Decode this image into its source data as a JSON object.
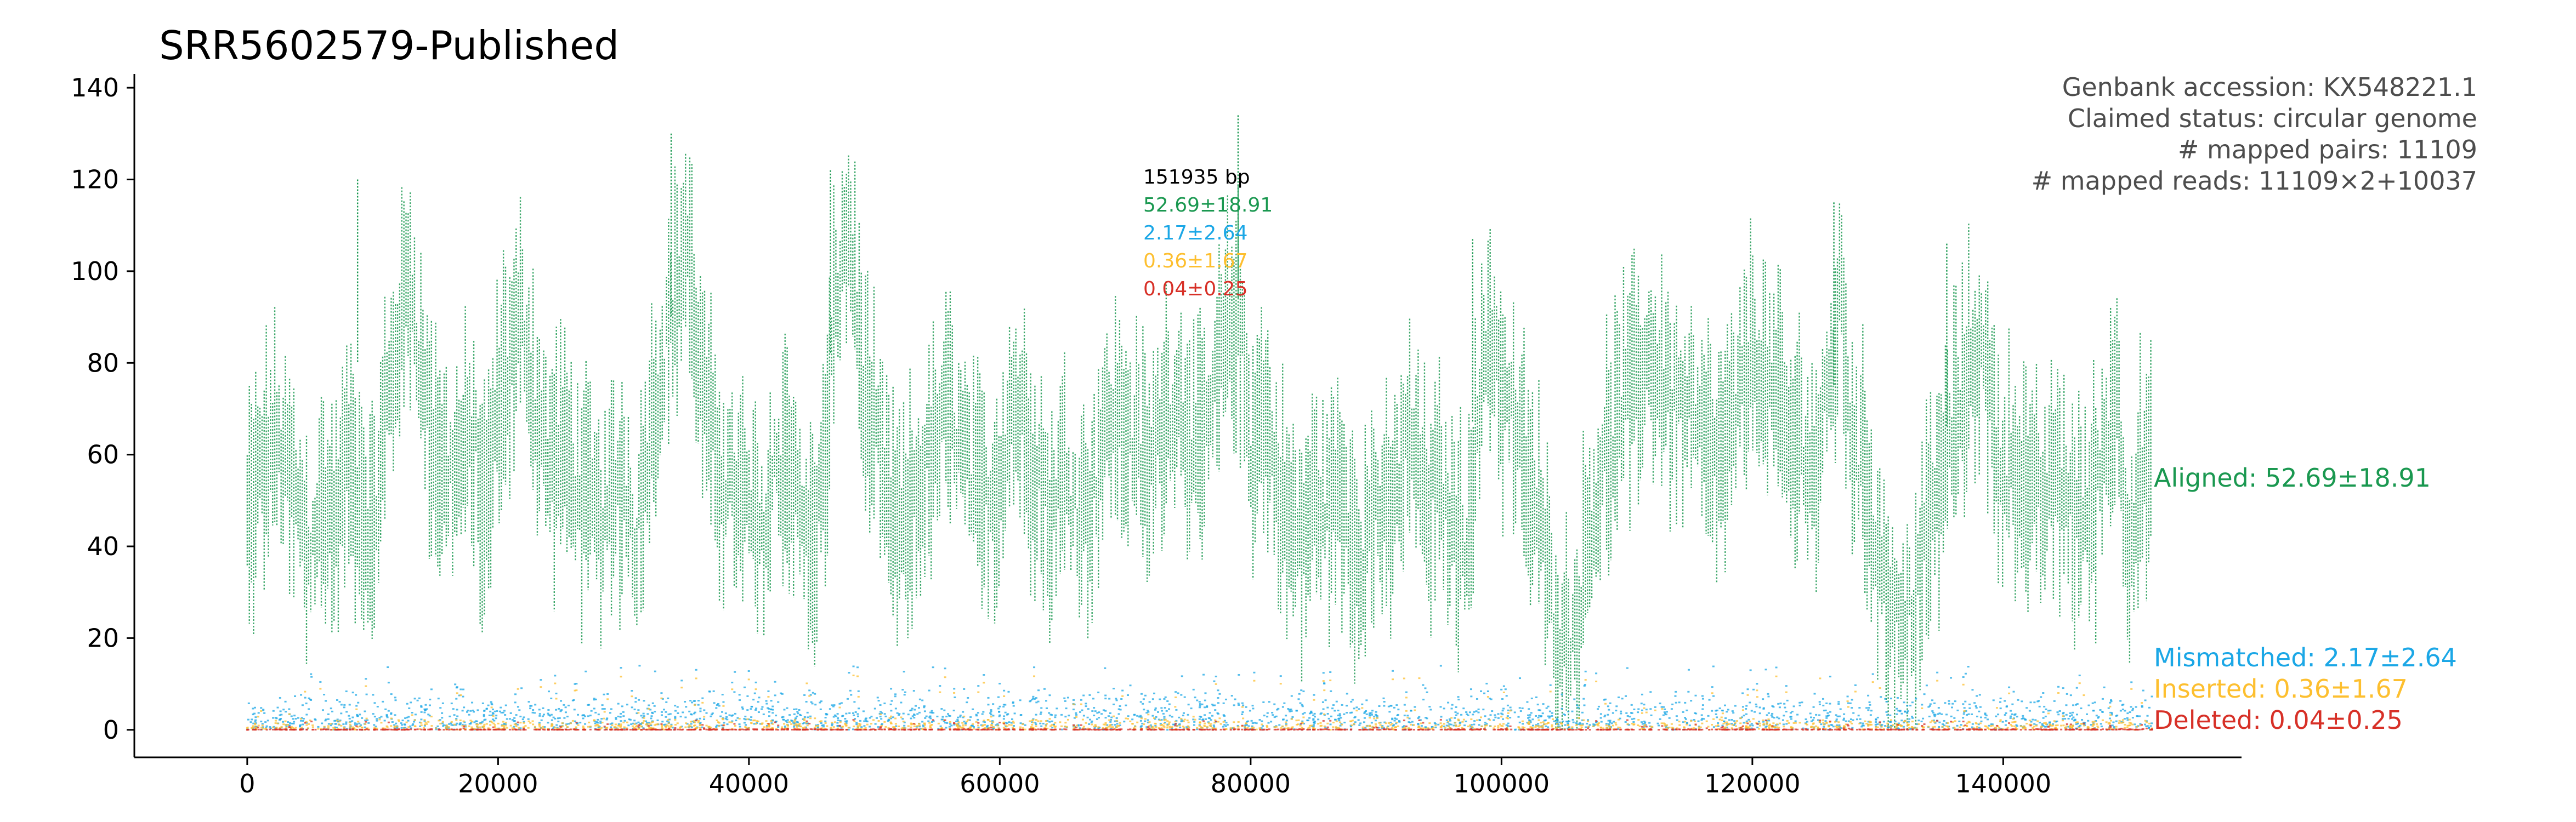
{
  "chart_data": {
    "type": "scatter",
    "title": "SRR5602579-Published",
    "xlabel": "",
    "ylabel": "",
    "xlim": [
      -9000,
      159000
    ],
    "ylim": [
      -6,
      143
    ],
    "x_ticks": [
      0,
      20000,
      40000,
      60000,
      80000,
      100000,
      120000,
      140000
    ],
    "x_tick_labels": [
      "0",
      "20000",
      "40000",
      "60000",
      "80000",
      "100000",
      "120000",
      "140000"
    ],
    "y_ticks": [
      0,
      20,
      40,
      60,
      80,
      100,
      120,
      140
    ],
    "y_tick_labels": [
      "0",
      "20",
      "40",
      "60",
      "80",
      "100",
      "120",
      "140"
    ],
    "genome_length": 151935,
    "info_lines": [
      "Genbank accession: KX548221.1",
      "Claimed status: circular genome",
      "# mapped pairs: 11109",
      "# mapped reads: 11109×2+10037"
    ],
    "stats_box": {
      "length_label": "151935 bp",
      "aligned": "52.69±18.91",
      "mismatched": "2.17±2.64",
      "inserted": "0.36±1.67",
      "deleted": "0.04±0.25"
    },
    "series": [
      {
        "name": "Aligned",
        "label": "Aligned: 52.69±18.91",
        "mean": 52.69,
        "sd": 18.91,
        "color": "#1a9850",
        "profile_x": [
          0,
          1000,
          2000,
          3000,
          4000,
          5000,
          6000,
          7000,
          8000,
          9000,
          10000,
          11000,
          12000,
          13000,
          14000,
          15000,
          16000,
          17000,
          18000,
          19000,
          20000,
          21000,
          22000,
          23000,
          24000,
          25000,
          26000,
          27000,
          28000,
          29000,
          30000,
          31000,
          32000,
          33000,
          34000,
          35000,
          36000,
          37000,
          38000,
          39000,
          40000,
          41000,
          42000,
          43000,
          44000,
          45000,
          46000,
          47000,
          48000,
          49000,
          50000,
          51000,
          52000,
          53000,
          54000,
          55000,
          56000,
          57000,
          58000,
          59000,
          60000,
          61000,
          62000,
          63000,
          64000,
          65000,
          66000,
          67000,
          68000,
          69000,
          70000,
          71000,
          72000,
          73000,
          74000,
          75000,
          76000,
          77000,
          78000,
          79000,
          80000,
          81000,
          82000,
          83000,
          84000,
          85000,
          86000,
          87000,
          88000,
          89000,
          90000,
          91000,
          92000,
          93000,
          94000,
          95000,
          96000,
          97000,
          98000,
          99000,
          100000,
          101000,
          102000,
          103000,
          104000,
          105000,
          106000,
          107000,
          108000,
          109000,
          110000,
          111000,
          112000,
          113000,
          114000,
          115000,
          116000,
          117000,
          118000,
          119000,
          120000,
          121000,
          122000,
          123000,
          124000,
          125000,
          126000,
          127000,
          128000,
          129000,
          130000,
          131000,
          132000,
          133000,
          134000,
          135000,
          136000,
          137000,
          138000,
          139000,
          140000,
          141000,
          142000,
          143000,
          144000,
          145000,
          146000,
          147000,
          148000,
          149000,
          150000,
          151000
        ],
        "profile_y": [
          45,
          55,
          62,
          58,
          48,
          38,
          50,
          45,
          60,
          52,
          40,
          68,
          85,
          100,
          75,
          62,
          55,
          58,
          63,
          45,
          72,
          80,
          90,
          70,
          58,
          62,
          55,
          50,
          45,
          48,
          55,
          40,
          65,
          78,
          92,
          108,
          80,
          62,
          55,
          50,
          48,
          40,
          55,
          62,
          48,
          38,
          56,
          95,
          110,
          78,
          62,
          50,
          42,
          48,
          55,
          62,
          70,
          60,
          52,
          48,
          55,
          72,
          65,
          58,
          45,
          55,
          50,
          48,
          60,
          68,
          66,
          60,
          55,
          70,
          72,
          68,
          58,
          70,
          85,
          92,
          62,
          70,
          55,
          45,
          40,
          50,
          48,
          52,
          45,
          38,
          50,
          42,
          58,
          62,
          48,
          52,
          45,
          40,
          62,
          90,
          75,
          65,
          55,
          45,
          28,
          18,
          22,
          45,
          55,
          65,
          72,
          78,
          80,
          75,
          70,
          68,
          62,
          58,
          62,
          70,
          85,
          75,
          72,
          60,
          65,
          55,
          70,
          95,
          62,
          55,
          40,
          28,
          18,
          30,
          42,
          55,
          65,
          75,
          85,
          70,
          55,
          60,
          50,
          48,
          55,
          52,
          45,
          48,
          60,
          75,
          40,
          55
        ]
      },
      {
        "name": "Mismatched",
        "label": "Mismatched: 2.17±2.64",
        "mean": 2.17,
        "sd": 2.64,
        "color": "#1ba7e6"
      },
      {
        "name": "Inserted",
        "label": "Inserted: 0.36±1.67",
        "mean": 0.36,
        "sd": 1.67,
        "color": "#fdbf2f"
      },
      {
        "name": "Deleted",
        "label": "Deleted: 0.04±0.25",
        "mean": 0.04,
        "sd": 0.25,
        "color": "#d73027"
      }
    ]
  }
}
